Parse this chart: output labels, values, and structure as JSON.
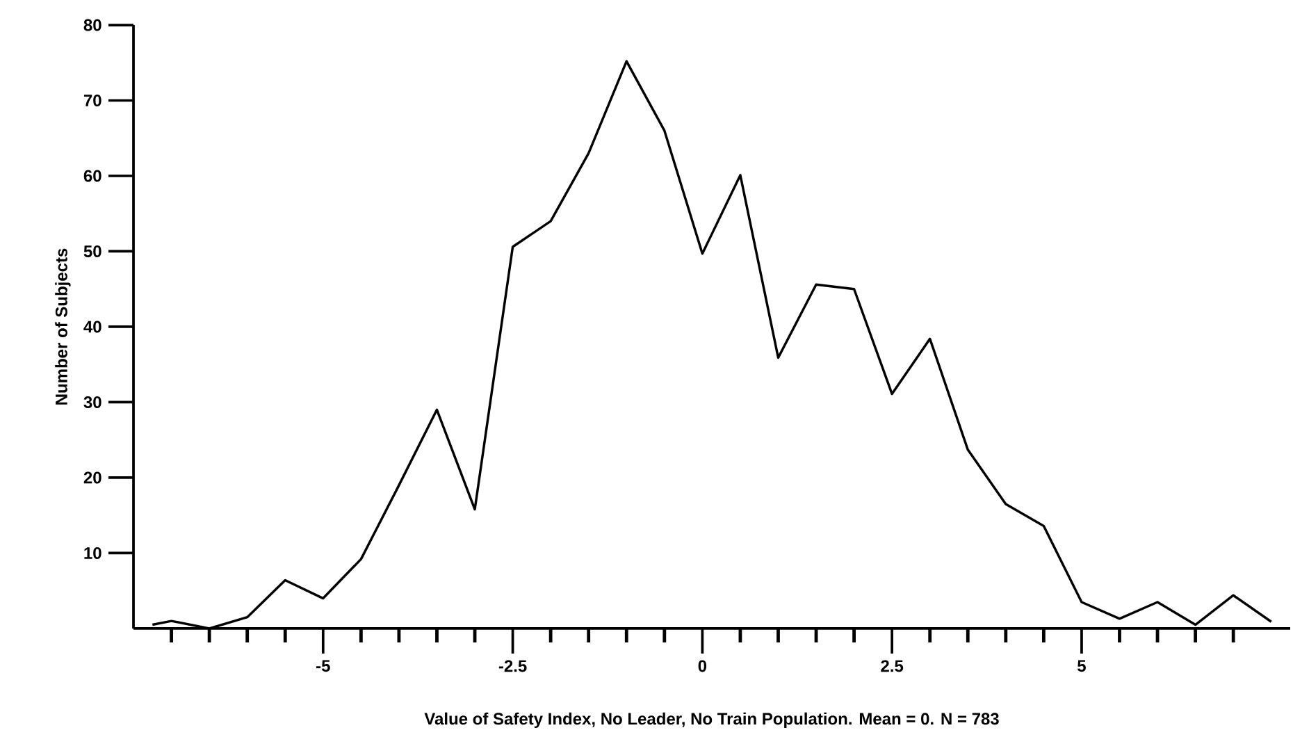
{
  "chart_data": {
    "type": "line",
    "xlabel": "Value of Safety Index, No Leader, No Train Population.  Mean = 0.  N = 783",
    "ylabel": "Number of Subjects",
    "x": [
      -7.25,
      -7,
      -6.5,
      -6,
      -5.5,
      -5,
      -4.5,
      -4,
      -3.5,
      -3,
      -2.5,
      -2,
      -1.5,
      -1,
      -0.5,
      0,
      0.5,
      1,
      1.5,
      2,
      2.5,
      3,
      3.5,
      4,
      4.5,
      5,
      5.5,
      6,
      6.5,
      7,
      7.5
    ],
    "values": [
      0.5,
      1,
      0,
      1.5,
      6.4,
      4,
      9.2,
      19,
      29,
      15.8,
      50.6,
      54,
      63,
      75.2,
      66,
      49.7,
      60.1,
      35.9,
      45.6,
      45,
      31.1,
      38.4,
      23.7,
      16.5,
      13.6,
      3.5,
      1.3,
      3.5,
      0.5,
      4.4,
      0.9
    ],
    "color": "#000000",
    "marker": "none",
    "line_style": "solid",
    "grid": false,
    "xlim": [
      -7.5,
      7.75
    ],
    "ylim": [
      0,
      80
    ],
    "xticks": [
      {
        "value": -7,
        "label": null
      },
      {
        "value": -6.5,
        "label": null
      },
      {
        "value": -6,
        "label": null
      },
      {
        "value": -5.5,
        "label": null
      },
      -5,
      {
        "value": -4.5,
        "label": null
      },
      {
        "value": -4,
        "label": null
      },
      {
        "value": -3.5,
        "label": null
      },
      {
        "value": -3,
        "label": null
      },
      -2.5,
      {
        "value": -2,
        "label": null
      },
      {
        "value": -1.5,
        "label": null
      },
      {
        "value": -1,
        "label": null
      },
      {
        "value": -0.5,
        "label": null
      },
      0,
      {
        "value": 0.5,
        "label": null
      },
      {
        "value": 1,
        "label": null
      },
      {
        "value": 1.5,
        "label": null
      },
      {
        "value": 2,
        "label": null
      },
      2.5,
      {
        "value": 3,
        "label": null
      },
      {
        "value": 3.5,
        "label": null
      },
      {
        "value": 4,
        "label": null
      },
      {
        "value": 4.5,
        "label": null
      },
      5,
      {
        "value": 5.5,
        "label": null
      },
      {
        "value": 6,
        "label": null
      },
      {
        "value": 6.5,
        "label": null
      },
      {
        "value": 7,
        "label": null
      }
    ],
    "yticks": [
      10,
      20,
      30,
      40,
      50,
      60,
      70,
      80
    ]
  }
}
